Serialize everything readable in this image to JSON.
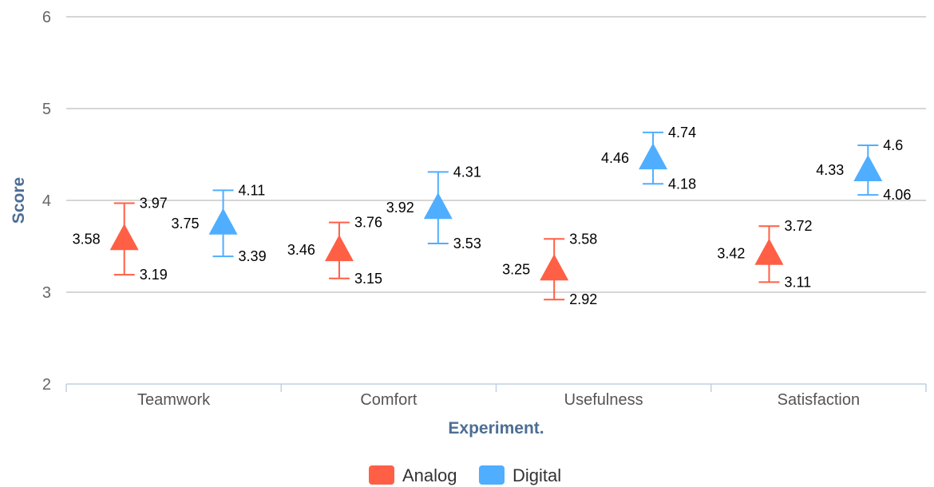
{
  "chart_data": {
    "type": "scatter",
    "title": "",
    "xlabel": "Experiment.",
    "ylabel": "Score",
    "ylim": [
      2,
      6
    ],
    "yticks": [
      2,
      3,
      4,
      5,
      6
    ],
    "grid": true,
    "categories": [
      "Teamwork",
      "Comfort",
      "Usefulness",
      "Satisfaction"
    ],
    "legend_position": "bottom-center",
    "series": [
      {
        "name": "Analog",
        "color": "#ff5f45",
        "marker": "triangle",
        "values": [
          3.58,
          3.46,
          3.25,
          3.42
        ],
        "error_low": [
          3.19,
          3.15,
          2.92,
          3.11
        ],
        "error_high": [
          3.97,
          3.76,
          3.58,
          3.72
        ]
      },
      {
        "name": "Digital",
        "color": "#4faeff",
        "marker": "triangle",
        "values": [
          3.75,
          3.92,
          4.46,
          4.33
        ],
        "error_low": [
          3.39,
          3.53,
          4.18,
          4.06
        ],
        "error_high": [
          4.11,
          4.31,
          4.74,
          4.6
        ]
      }
    ]
  }
}
